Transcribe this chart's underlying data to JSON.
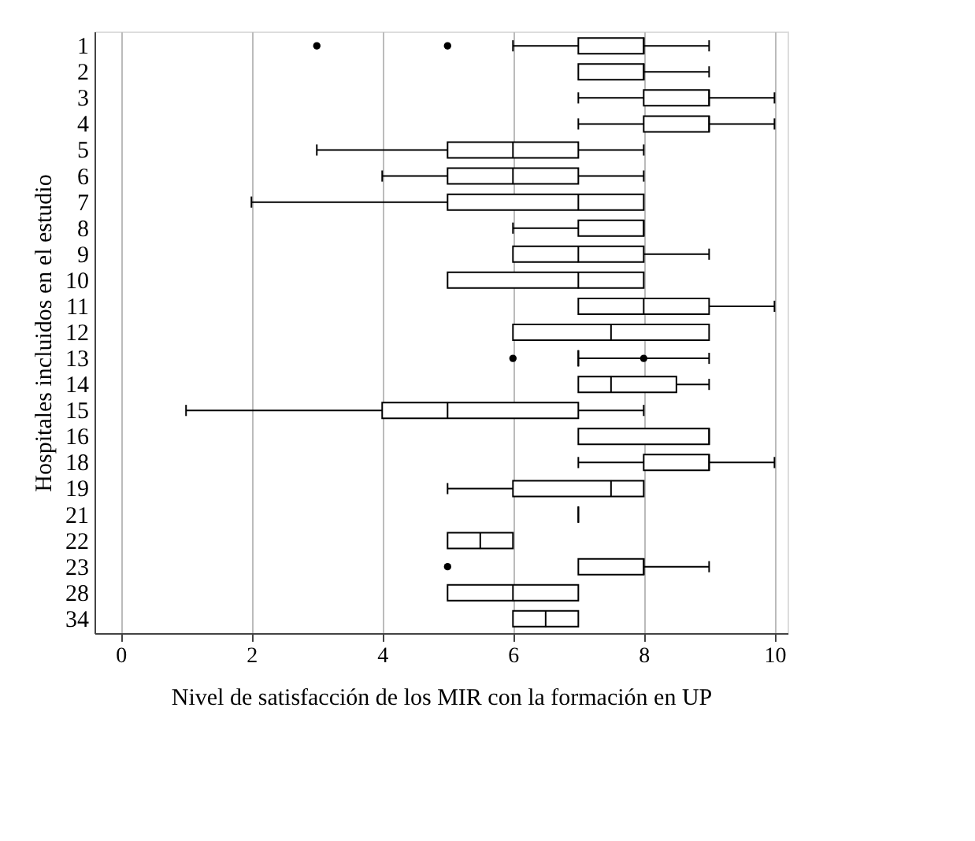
{
  "chart_data": {
    "type": "box",
    "orientation": "horizontal",
    "xlabel": "Nivel de satisfacción de los MIR con la formación en UP",
    "ylabel": "Hospitales incluidos en el estudio",
    "categories": [
      "1",
      "2",
      "3",
      "4",
      "5",
      "6",
      "7",
      "8",
      "9",
      "10",
      "11",
      "12",
      "13",
      "14",
      "15",
      "16",
      "18",
      "19",
      "21",
      "22",
      "23",
      "28",
      "34"
    ],
    "boxes": [
      {
        "low": 6,
        "q1": 7,
        "median": 8,
        "q3": 8,
        "high": 9,
        "outliers": [
          3,
          5
        ]
      },
      {
        "low": 7,
        "q1": 7,
        "median": 8,
        "q3": 8,
        "high": 9
      },
      {
        "low": 7,
        "q1": 8,
        "median": 9,
        "q3": 9,
        "high": 10
      },
      {
        "low": 7,
        "q1": 8,
        "median": 9,
        "q3": 9,
        "high": 10
      },
      {
        "low": 3,
        "q1": 5,
        "median": 6,
        "q3": 7,
        "high": 8
      },
      {
        "low": 4,
        "q1": 5,
        "median": 6,
        "q3": 7,
        "high": 8
      },
      {
        "low": 2,
        "q1": 5,
        "median": 7,
        "q3": 8,
        "high": 8
      },
      {
        "low": 6,
        "q1": 7,
        "median": 8,
        "q3": 8,
        "high": 8
      },
      {
        "low": 6,
        "q1": 6,
        "median": 7,
        "q3": 8,
        "high": 9
      },
      {
        "low": 5,
        "q1": 5,
        "median": 7,
        "q3": 8,
        "high": 8
      },
      {
        "low": 7,
        "q1": 7,
        "median": 8,
        "q3": 9,
        "high": 10
      },
      {
        "low": 6,
        "q1": 6,
        "median": 7.5,
        "q3": 9,
        "high": 9
      },
      {
        "low": 7,
        "q1": 7,
        "median": 7,
        "q3": 7,
        "high": 9,
        "outliers": [
          6,
          8
        ]
      },
      {
        "low": 7,
        "q1": 7,
        "median": 7.5,
        "q3": 8.5,
        "high": 9
      },
      {
        "low": 1,
        "q1": 4,
        "median": 5,
        "q3": 7,
        "high": 8
      },
      {
        "low": 7,
        "q1": 7,
        "median": 9,
        "q3": 9,
        "high": 9
      },
      {
        "low": 7,
        "q1": 8,
        "median": 9,
        "q3": 9,
        "high": 10
      },
      {
        "low": 5,
        "q1": 6,
        "median": 7.5,
        "q3": 8,
        "high": 8
      },
      {
        "low": 7,
        "q1": 7,
        "median": 7,
        "q3": 7,
        "high": 7
      },
      {
        "low": 5,
        "q1": 5,
        "median": 5.5,
        "q3": 6,
        "high": 6
      },
      {
        "low": 7,
        "q1": 7,
        "median": 8,
        "q3": 8,
        "high": 9,
        "outliers": [
          5
        ]
      },
      {
        "low": 5,
        "q1": 5,
        "median": 6,
        "q3": 7,
        "high": 7
      },
      {
        "low": 6,
        "q1": 6,
        "median": 6.5,
        "q3": 7,
        "high": 7
      }
    ],
    "xlim": [
      -0.4,
      10.2
    ],
    "xticks": [
      0,
      2,
      4,
      6,
      8,
      10
    ],
    "grid": "x"
  }
}
